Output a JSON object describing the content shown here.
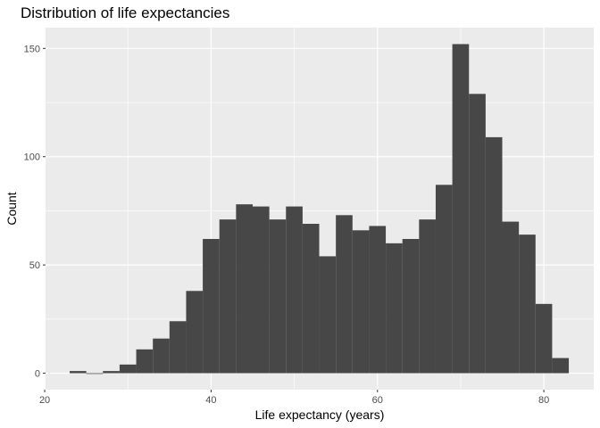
{
  "chart_data": {
    "type": "bar",
    "title": "Distribution of life expectancies",
    "xlabel": "Life expectancy (years)",
    "ylabel": "Count",
    "xlim": [
      20.1,
      86.0
    ],
    "ylim": [
      -7.6,
      159.6
    ],
    "x_ticks": [
      20,
      40,
      60,
      80
    ],
    "y_ticks": [
      0,
      50,
      100,
      150
    ],
    "x_tick_labels": [
      "20",
      "40",
      "60",
      "80"
    ],
    "y_tick_labels": [
      "0",
      "50",
      "100",
      "150"
    ],
    "grid": true,
    "legend": "none",
    "bin_width": 2,
    "bins": [
      {
        "x0": 23.0,
        "x1": 25.0,
        "count": 1
      },
      {
        "x0": 25.0,
        "x1": 27.0,
        "count": 0
      },
      {
        "x0": 27.0,
        "x1": 29.0,
        "count": 1
      },
      {
        "x0": 29.0,
        "x1": 31.0,
        "count": 4
      },
      {
        "x0": 31.0,
        "x1": 33.0,
        "count": 11
      },
      {
        "x0": 33.0,
        "x1": 35.0,
        "count": 16
      },
      {
        "x0": 35.0,
        "x1": 37.0,
        "count": 24
      },
      {
        "x0": 37.0,
        "x1": 39.0,
        "count": 38
      },
      {
        "x0": 39.0,
        "x1": 41.0,
        "count": 62
      },
      {
        "x0": 41.0,
        "x1": 43.0,
        "count": 71
      },
      {
        "x0": 43.0,
        "x1": 45.0,
        "count": 78
      },
      {
        "x0": 45.0,
        "x1": 47.0,
        "count": 77
      },
      {
        "x0": 47.0,
        "x1": 49.0,
        "count": 71
      },
      {
        "x0": 49.0,
        "x1": 51.0,
        "count": 77
      },
      {
        "x0": 51.0,
        "x1": 53.0,
        "count": 69
      },
      {
        "x0": 53.0,
        "x1": 55.0,
        "count": 54
      },
      {
        "x0": 55.0,
        "x1": 57.0,
        "count": 73
      },
      {
        "x0": 57.0,
        "x1": 59.0,
        "count": 66
      },
      {
        "x0": 59.0,
        "x1": 61.0,
        "count": 68
      },
      {
        "x0": 61.0,
        "x1": 63.0,
        "count": 60
      },
      {
        "x0": 63.0,
        "x1": 65.0,
        "count": 62
      },
      {
        "x0": 65.0,
        "x1": 67.0,
        "count": 71
      },
      {
        "x0": 67.0,
        "x1": 69.0,
        "count": 87
      },
      {
        "x0": 69.0,
        "x1": 71.0,
        "count": 152
      },
      {
        "x0": 71.0,
        "x1": 73.0,
        "count": 129
      },
      {
        "x0": 73.0,
        "x1": 75.0,
        "count": 109
      },
      {
        "x0": 75.0,
        "x1": 77.0,
        "count": 70
      },
      {
        "x0": 77.0,
        "x1": 79.0,
        "count": 64
      },
      {
        "x0": 79.0,
        "x1": 81.0,
        "count": 32
      },
      {
        "x0": 81.0,
        "x1": 83.0,
        "count": 7
      }
    ],
    "colors": {
      "bar_fill": "#474747",
      "panel_background": "#ebebeb",
      "grid_line": "#ffffff",
      "tick_mark": "#333333",
      "tick_label": "#4d4d4d"
    }
  }
}
